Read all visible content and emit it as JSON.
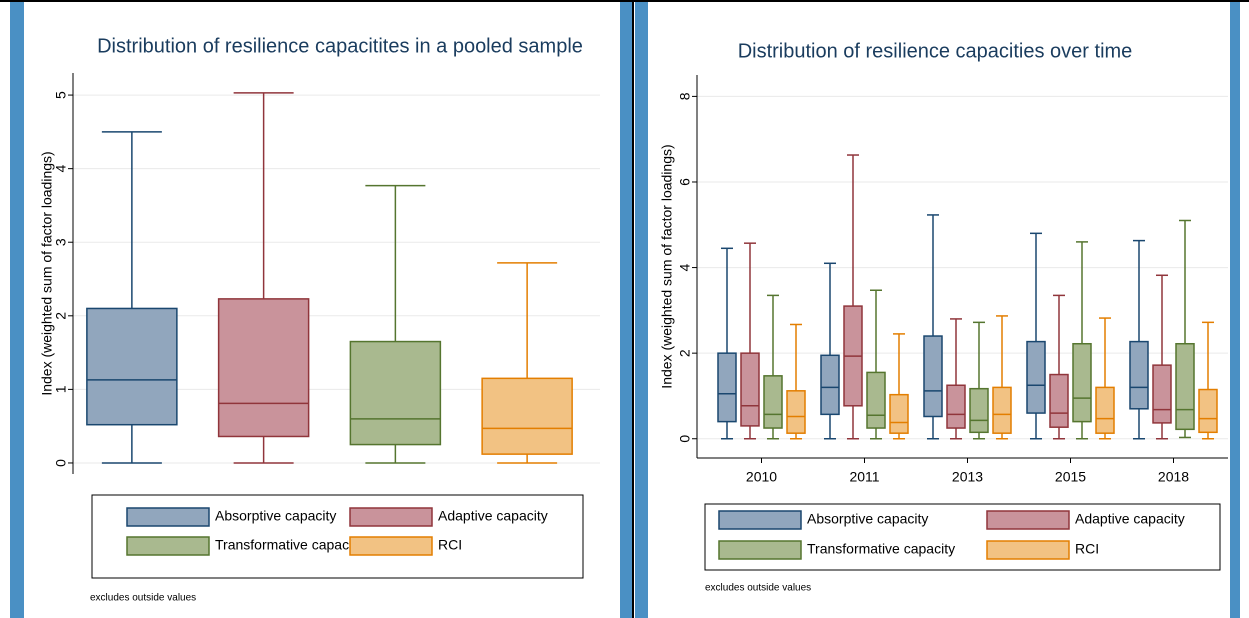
{
  "chart_data": [
    {
      "type": "box",
      "title": "Distribution of resilience capacitites in a pooled sample",
      "y_label": "Index (weighted sum of factor loadings)",
      "note": "excludes outside values",
      "ylim": [
        -0.15,
        5.3
      ],
      "yticks": [
        0,
        1,
        2,
        3,
        4,
        5
      ],
      "grid": true,
      "series": [
        {
          "name": "Absorptive capacity",
          "color": "#91a6bd",
          "edge": "#1a476f",
          "low": [
            0
          ],
          "q1": [
            0.52
          ],
          "median": [
            1.13
          ],
          "q3": [
            2.1
          ],
          "high": [
            4.5
          ]
        },
        {
          "name": "Adaptive capacity",
          "color": "#c9939b",
          "edge": "#90353b",
          "low": [
            0
          ],
          "q1": [
            0.36
          ],
          "median": [
            0.81
          ],
          "q3": [
            2.23
          ],
          "high": [
            5.03
          ]
        },
        {
          "name": "Transformative capacity",
          "color": "#a9b98f",
          "edge": "#55752f",
          "low": [
            0
          ],
          "q1": [
            0.25
          ],
          "median": [
            0.6
          ],
          "q3": [
            1.65
          ],
          "high": [
            3.77
          ]
        },
        {
          "name": "RCI",
          "color": "#f2c283",
          "edge": "#e37e00",
          "low": [
            0
          ],
          "q1": [
            0.12
          ],
          "median": [
            0.47
          ],
          "q3": [
            1.15
          ],
          "high": [
            2.72
          ]
        }
      ]
    },
    {
      "type": "box",
      "title": "Distribution of resilience capacities over time",
      "y_label": "Index (weighted sum of factor loadings)",
      "note": "excludes outside values",
      "categories": [
        "2010",
        "2011",
        "2013",
        "2015",
        "2018"
      ],
      "ylim": [
        -0.45,
        8.5
      ],
      "yticks": [
        0,
        2,
        4,
        6,
        8
      ],
      "grid": true,
      "series": [
        {
          "name": "Absorptive capacity",
          "color": "#91a6bd",
          "edge": "#1a476f",
          "low": [
            0,
            0,
            0,
            0,
            0
          ],
          "q1": [
            0.4,
            0.57,
            0.52,
            0.6,
            0.7
          ],
          "median": [
            1.05,
            1.2,
            1.12,
            1.25,
            1.2
          ],
          "q3": [
            2.0,
            1.95,
            2.4,
            2.27,
            2.27
          ],
          "high": [
            4.45,
            4.1,
            5.23,
            4.8,
            4.63
          ]
        },
        {
          "name": "Adaptive capacity",
          "color": "#c9939b",
          "edge": "#90353b",
          "low": [
            0,
            0,
            0,
            0,
            0
          ],
          "q1": [
            0.3,
            0.77,
            0.25,
            0.27,
            0.37
          ],
          "median": [
            0.77,
            1.93,
            0.57,
            0.6,
            0.68
          ],
          "q3": [
            2.0,
            3.1,
            1.25,
            1.5,
            1.72
          ],
          "high": [
            4.57,
            6.63,
            2.8,
            3.35,
            3.82
          ]
        },
        {
          "name": "Transformative capacity",
          "color": "#a9b98f",
          "edge": "#55752f",
          "low": [
            0,
            0,
            0,
            0,
            0.03
          ],
          "q1": [
            0.25,
            0.25,
            0.15,
            0.4,
            0.22
          ],
          "median": [
            0.57,
            0.55,
            0.43,
            0.95,
            0.68
          ],
          "q3": [
            1.47,
            1.55,
            1.17,
            2.22,
            2.22
          ],
          "high": [
            3.35,
            3.47,
            2.72,
            4.6,
            5.1
          ]
        },
        {
          "name": "RCI",
          "color": "#f2c283",
          "edge": "#e37e00",
          "low": [
            0,
            0,
            0,
            0,
            0
          ],
          "q1": [
            0.13,
            0.13,
            0.13,
            0.13,
            0.15
          ],
          "median": [
            0.52,
            0.38,
            0.57,
            0.47,
            0.47
          ],
          "q3": [
            1.12,
            1.03,
            1.2,
            1.2,
            1.15
          ],
          "high": [
            2.67,
            2.45,
            2.87,
            2.82,
            2.72
          ]
        }
      ]
    }
  ]
}
